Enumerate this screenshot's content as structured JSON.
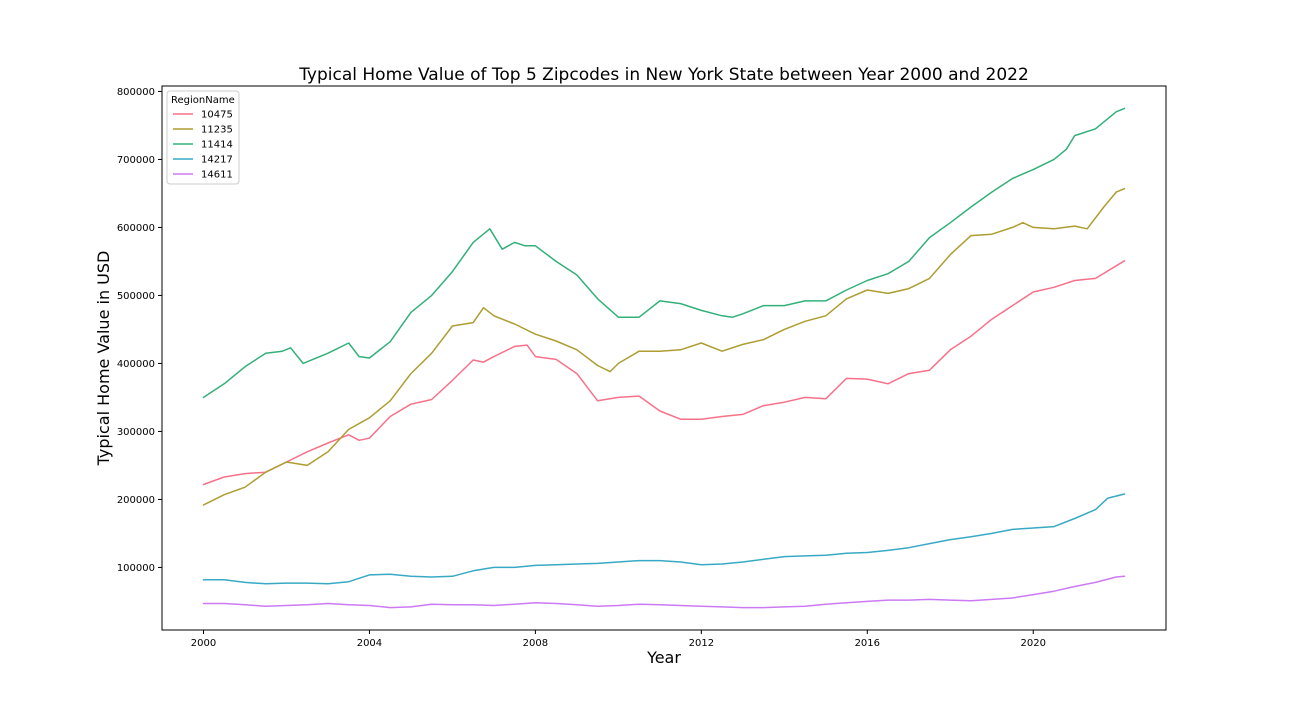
{
  "chart_data": {
    "type": "line",
    "title": "Typical Home Value of Top 5 Zipcodes in New York State between Year 2000 and 2022",
    "xlabel": "Year",
    "ylabel": "Typical Home Value in USD",
    "xlim": [
      1999.0,
      2023.2
    ],
    "ylim": [
      8000,
      808000
    ],
    "xticks": [
      2000,
      2004,
      2008,
      2012,
      2016,
      2020
    ],
    "yticks": [
      100000,
      200000,
      300000,
      400000,
      500000,
      600000,
      700000,
      800000
    ],
    "grid": false,
    "legend": {
      "title": "RegionName",
      "placement": "top-left"
    },
    "series": [
      {
        "name": "10475",
        "color": "#f77189",
        "points": [
          [
            2000.0,
            222000
          ],
          [
            2000.5,
            233000
          ],
          [
            2001.0,
            238000
          ],
          [
            2001.5,
            240000
          ],
          [
            2002.0,
            255000
          ],
          [
            2002.5,
            270000
          ],
          [
            2003.0,
            283000
          ],
          [
            2003.5,
            295000
          ],
          [
            2003.75,
            287000
          ],
          [
            2004.0,
            290000
          ],
          [
            2004.5,
            322000
          ],
          [
            2005.0,
            340000
          ],
          [
            2005.5,
            347000
          ],
          [
            2006.0,
            375000
          ],
          [
            2006.5,
            405000
          ],
          [
            2006.75,
            402000
          ],
          [
            2007.0,
            410000
          ],
          [
            2007.5,
            425000
          ],
          [
            2007.8,
            427000
          ],
          [
            2008.0,
            410000
          ],
          [
            2008.5,
            406000
          ],
          [
            2009.0,
            385000
          ],
          [
            2009.5,
            345000
          ],
          [
            2010.0,
            350000
          ],
          [
            2010.5,
            352000
          ],
          [
            2011.0,
            330000
          ],
          [
            2011.5,
            318000
          ],
          [
            2012.0,
            318000
          ],
          [
            2012.5,
            322000
          ],
          [
            2013.0,
            325000
          ],
          [
            2013.5,
            338000
          ],
          [
            2014.0,
            343000
          ],
          [
            2014.5,
            350000
          ],
          [
            2015.0,
            348000
          ],
          [
            2015.5,
            378000
          ],
          [
            2016.0,
            377000
          ],
          [
            2016.5,
            370000
          ],
          [
            2017.0,
            385000
          ],
          [
            2017.5,
            390000
          ],
          [
            2018.0,
            420000
          ],
          [
            2018.5,
            440000
          ],
          [
            2019.0,
            465000
          ],
          [
            2019.5,
            485000
          ],
          [
            2020.0,
            505000
          ],
          [
            2020.5,
            512000
          ],
          [
            2021.0,
            522000
          ],
          [
            2021.5,
            525000
          ],
          [
            2022.2,
            551000
          ]
        ]
      },
      {
        "name": "11235",
        "color": "#ae9d31",
        "points": [
          [
            2000.0,
            192000
          ],
          [
            2000.5,
            207000
          ],
          [
            2001.0,
            218000
          ],
          [
            2001.5,
            240000
          ],
          [
            2002.0,
            255000
          ],
          [
            2002.5,
            250000
          ],
          [
            2003.0,
            270000
          ],
          [
            2003.5,
            303000
          ],
          [
            2004.0,
            320000
          ],
          [
            2004.5,
            345000
          ],
          [
            2005.0,
            385000
          ],
          [
            2005.5,
            415000
          ],
          [
            2006.0,
            455000
          ],
          [
            2006.5,
            460000
          ],
          [
            2006.75,
            482000
          ],
          [
            2007.0,
            470000
          ],
          [
            2007.5,
            458000
          ],
          [
            2008.0,
            443000
          ],
          [
            2008.5,
            433000
          ],
          [
            2009.0,
            420000
          ],
          [
            2009.5,
            397000
          ],
          [
            2009.8,
            388000
          ],
          [
            2010.0,
            400000
          ],
          [
            2010.5,
            418000
          ],
          [
            2011.0,
            418000
          ],
          [
            2011.5,
            420000
          ],
          [
            2012.0,
            430000
          ],
          [
            2012.5,
            418000
          ],
          [
            2013.0,
            428000
          ],
          [
            2013.5,
            435000
          ],
          [
            2014.0,
            450000
          ],
          [
            2014.5,
            462000
          ],
          [
            2015.0,
            470000
          ],
          [
            2015.5,
            495000
          ],
          [
            2016.0,
            508000
          ],
          [
            2016.5,
            503000
          ],
          [
            2017.0,
            510000
          ],
          [
            2017.5,
            525000
          ],
          [
            2018.0,
            560000
          ],
          [
            2018.5,
            588000
          ],
          [
            2019.0,
            590000
          ],
          [
            2019.5,
            600000
          ],
          [
            2019.75,
            607000
          ],
          [
            2020.0,
            600000
          ],
          [
            2020.5,
            598000
          ],
          [
            2021.0,
            602000
          ],
          [
            2021.3,
            598000
          ],
          [
            2021.7,
            630000
          ],
          [
            2022.0,
            652000
          ],
          [
            2022.2,
            657000
          ]
        ]
      },
      {
        "name": "11414",
        "color": "#33b07a",
        "points": [
          [
            2000.0,
            350000
          ],
          [
            2000.5,
            370000
          ],
          [
            2001.0,
            395000
          ],
          [
            2001.5,
            415000
          ],
          [
            2001.9,
            418000
          ],
          [
            2002.1,
            423000
          ],
          [
            2002.4,
            400000
          ],
          [
            2003.0,
            415000
          ],
          [
            2003.5,
            430000
          ],
          [
            2003.75,
            410000
          ],
          [
            2004.0,
            408000
          ],
          [
            2004.5,
            432000
          ],
          [
            2005.0,
            475000
          ],
          [
            2005.5,
            500000
          ],
          [
            2006.0,
            535000
          ],
          [
            2006.5,
            578000
          ],
          [
            2006.9,
            598000
          ],
          [
            2007.2,
            568000
          ],
          [
            2007.5,
            578000
          ],
          [
            2007.75,
            573000
          ],
          [
            2008.0,
            573000
          ],
          [
            2008.5,
            550000
          ],
          [
            2009.0,
            530000
          ],
          [
            2009.5,
            495000
          ],
          [
            2010.0,
            468000
          ],
          [
            2010.5,
            468000
          ],
          [
            2011.0,
            492000
          ],
          [
            2011.5,
            488000
          ],
          [
            2012.0,
            478000
          ],
          [
            2012.5,
            470000
          ],
          [
            2012.75,
            468000
          ],
          [
            2013.0,
            473000
          ],
          [
            2013.5,
            485000
          ],
          [
            2014.0,
            485000
          ],
          [
            2014.5,
            492000
          ],
          [
            2015.0,
            492000
          ],
          [
            2015.5,
            508000
          ],
          [
            2016.0,
            522000
          ],
          [
            2016.5,
            532000
          ],
          [
            2017.0,
            550000
          ],
          [
            2017.5,
            585000
          ],
          [
            2018.0,
            607000
          ],
          [
            2018.5,
            630000
          ],
          [
            2019.0,
            652000
          ],
          [
            2019.5,
            672000
          ],
          [
            2020.0,
            685000
          ],
          [
            2020.5,
            700000
          ],
          [
            2020.8,
            715000
          ],
          [
            2021.0,
            735000
          ],
          [
            2021.5,
            745000
          ],
          [
            2022.0,
            770000
          ],
          [
            2022.2,
            775000
          ]
        ]
      },
      {
        "name": "14217",
        "color": "#38a9c5",
        "points": [
          [
            2000.0,
            82000
          ],
          [
            2000.5,
            82000
          ],
          [
            2001.0,
            78000
          ],
          [
            2001.5,
            76000
          ],
          [
            2002.0,
            77000
          ],
          [
            2002.5,
            77000
          ],
          [
            2003.0,
            76000
          ],
          [
            2003.5,
            79000
          ],
          [
            2004.0,
            89000
          ],
          [
            2004.5,
            90000
          ],
          [
            2005.0,
            87000
          ],
          [
            2005.5,
            86000
          ],
          [
            2006.0,
            87000
          ],
          [
            2006.5,
            95000
          ],
          [
            2007.0,
            100000
          ],
          [
            2007.5,
            100000
          ],
          [
            2008.0,
            103000
          ],
          [
            2008.5,
            104000
          ],
          [
            2009.0,
            105000
          ],
          [
            2009.5,
            106000
          ],
          [
            2010.0,
            108000
          ],
          [
            2010.5,
            110000
          ],
          [
            2011.0,
            110000
          ],
          [
            2011.5,
            108000
          ],
          [
            2012.0,
            104000
          ],
          [
            2012.5,
            105000
          ],
          [
            2013.0,
            108000
          ],
          [
            2013.5,
            112000
          ],
          [
            2014.0,
            116000
          ],
          [
            2014.5,
            117000
          ],
          [
            2015.0,
            118000
          ],
          [
            2015.5,
            121000
          ],
          [
            2016.0,
            122000
          ],
          [
            2016.5,
            125000
          ],
          [
            2017.0,
            129000
          ],
          [
            2017.5,
            135000
          ],
          [
            2018.0,
            141000
          ],
          [
            2018.5,
            145000
          ],
          [
            2019.0,
            150000
          ],
          [
            2019.5,
            156000
          ],
          [
            2020.0,
            158000
          ],
          [
            2020.5,
            160000
          ],
          [
            2021.0,
            172000
          ],
          [
            2021.5,
            185000
          ],
          [
            2021.8,
            202000
          ],
          [
            2022.2,
            208000
          ]
        ]
      },
      {
        "name": "14611",
        "color": "#cc7af4",
        "points": [
          [
            2000.0,
            47000
          ],
          [
            2000.5,
            47000
          ],
          [
            2001.0,
            45000
          ],
          [
            2001.5,
            43000
          ],
          [
            2002.0,
            44000
          ],
          [
            2002.5,
            45000
          ],
          [
            2003.0,
            47000
          ],
          [
            2003.5,
            45000
          ],
          [
            2004.0,
            44000
          ],
          [
            2004.5,
            41000
          ],
          [
            2005.0,
            42000
          ],
          [
            2005.5,
            46000
          ],
          [
            2006.0,
            45000
          ],
          [
            2006.5,
            45000
          ],
          [
            2007.0,
            44000
          ],
          [
            2007.5,
            46000
          ],
          [
            2008.0,
            48000
          ],
          [
            2008.5,
            47000
          ],
          [
            2009.0,
            45000
          ],
          [
            2009.5,
            43000
          ],
          [
            2010.0,
            44000
          ],
          [
            2010.5,
            46000
          ],
          [
            2011.0,
            45000
          ],
          [
            2011.5,
            44000
          ],
          [
            2012.0,
            43000
          ],
          [
            2012.5,
            42000
          ],
          [
            2013.0,
            41000
          ],
          [
            2013.5,
            41000
          ],
          [
            2014.0,
            42000
          ],
          [
            2014.5,
            43000
          ],
          [
            2015.0,
            46000
          ],
          [
            2015.5,
            48000
          ],
          [
            2016.0,
            50000
          ],
          [
            2016.5,
            52000
          ],
          [
            2017.0,
            52000
          ],
          [
            2017.5,
            53000
          ],
          [
            2018.0,
            52000
          ],
          [
            2018.5,
            51000
          ],
          [
            2019.0,
            53000
          ],
          [
            2019.5,
            55000
          ],
          [
            2020.0,
            60000
          ],
          [
            2020.5,
            65000
          ],
          [
            2021.0,
            72000
          ],
          [
            2021.5,
            78000
          ],
          [
            2022.0,
            86000
          ],
          [
            2022.2,
            87000
          ]
        ]
      }
    ]
  }
}
